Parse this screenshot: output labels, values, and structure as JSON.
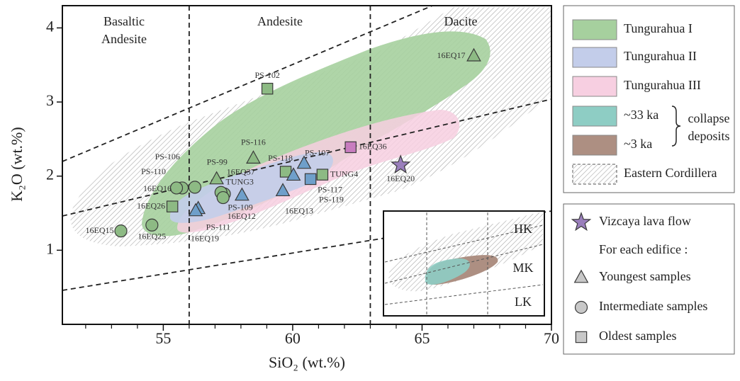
{
  "chart_data": {
    "type": "scatter",
    "x_label": "SiO₂ (wt.%)",
    "y_label": "K₂O (wt.%)",
    "xlim": [
      51.1,
      70
    ],
    "ylim": [
      0,
      4.3
    ],
    "xticks": [
      55,
      60,
      65,
      70
    ],
    "xminor": [
      52,
      53,
      54,
      56,
      57,
      58,
      59,
      61,
      62,
      63,
      64,
      66,
      67,
      68,
      69
    ],
    "yticks": [
      1,
      2,
      3,
      4
    ],
    "xdividers": [
      56,
      63
    ],
    "rock_fields": [
      [
        "Basaltic",
        "Andesite"
      ],
      [
        "Andesite"
      ],
      [
        "Dacite"
      ]
    ],
    "series": [
      {
        "name": "Tungurahua I",
        "color": "#a6d09e",
        "marker_color": "#8dba84",
        "points": [
          {
            "label": "16EQ17",
            "shape": "triangle",
            "x": 67.0,
            "y": 3.62
          },
          {
            "label": "PS-102",
            "shape": "square",
            "x": 59.02,
            "y": 3.18
          },
          {
            "label": "PS-116",
            "shape": "triangle",
            "x": 58.48,
            "y": 2.24
          },
          {
            "label": "PS-99",
            "shape": "triangle",
            "x": 57.06,
            "y": 1.96
          },
          {
            "label": "PS-118",
            "shape": "square",
            "x": 59.73,
            "y": 2.06
          },
          {
            "label": "TUNG4",
            "shape": "square",
            "x": 61.15,
            "y": 2.02
          },
          {
            "label": "16EQ26",
            "shape": "square",
            "x": 55.35,
            "y": 1.59
          },
          {
            "label": "PS-110",
            "shape": "circle",
            "x": 55.73,
            "y": 1.84
          },
          {
            "label": "PS-106",
            "shape": "circle",
            "x": 56.22,
            "y": 1.85
          },
          {
            "label": "16EQ16",
            "shape": "circle",
            "x": 55.51,
            "y": 1.84
          },
          {
            "label": "16EQ15",
            "shape": "circle",
            "x": 53.36,
            "y": 1.26
          },
          {
            "label": "16EQ25",
            "shape": "circle",
            "x": 54.56,
            "y": 1.34
          },
          {
            "label": "TUNG3",
            "shape": "circle",
            "x": 57.36,
            "y": 1.76
          },
          {
            "label": "16EQ37",
            "shape": "circle",
            "x": 57.23,
            "y": 1.78
          },
          {
            "label": "16EQ12",
            "shape": "circle",
            "x": 57.31,
            "y": 1.71
          }
        ]
      },
      {
        "name": "Tungurahua II",
        "color": "#c3cdea",
        "marker_color": "#6f9fca",
        "points": [
          {
            "label": "PS-109",
            "shape": "triangle",
            "x": 58.04,
            "y": 1.74
          },
          {
            "label": "PS-111",
            "shape": "triangle",
            "x": 56.35,
            "y": 1.56
          },
          {
            "label": "16EQ19",
            "shape": "triangle",
            "x": 56.25,
            "y": 1.53
          },
          {
            "label": "16EQ13",
            "shape": "triangle",
            "x": 59.62,
            "y": 1.8
          },
          {
            "label": "PS-107",
            "shape": "triangle",
            "x": 60.44,
            "y": 2.17
          },
          {
            "label": "PS-119",
            "shape": "triangle",
            "x": 60.03,
            "y": 2.01
          },
          {
            "label": "PS-117",
            "shape": "square",
            "x": 60.69,
            "y": 1.96
          }
        ]
      },
      {
        "name": "Tungurahua III",
        "color": "#f7cfe1",
        "marker_color": "#c87dbf",
        "points": [
          {
            "label": "16EQ36",
            "shape": "square",
            "x": 62.24,
            "y": 2.39
          }
        ]
      },
      {
        "name": "~33 ka",
        "color": "#8ecdc4",
        "points": []
      },
      {
        "name": "~3 ka",
        "color": "#ad8f82",
        "points": []
      },
      {
        "name": "Eastern Cordillera",
        "color": "#9a9a9a",
        "points": []
      }
    ],
    "group_note": [
      "collapse",
      "deposits"
    ],
    "vizcaya": {
      "name": "Vizcaya lava flow",
      "color": "#9a7fbc",
      "points": [
        {
          "label": "16EQ20",
          "shape": "star",
          "x": 64.17,
          "y": 2.15
        }
      ]
    },
    "symbol_key_title": "For each edifice :",
    "symbol_key": [
      {
        "shape": "triangle",
        "label": "Youngest samples"
      },
      {
        "shape": "circle",
        "label": "Intermediate samples"
      },
      {
        "shape": "square",
        "label": "Oldest samples"
      }
    ],
    "inset_labels": [
      "HK",
      "MK",
      "LK"
    ]
  }
}
